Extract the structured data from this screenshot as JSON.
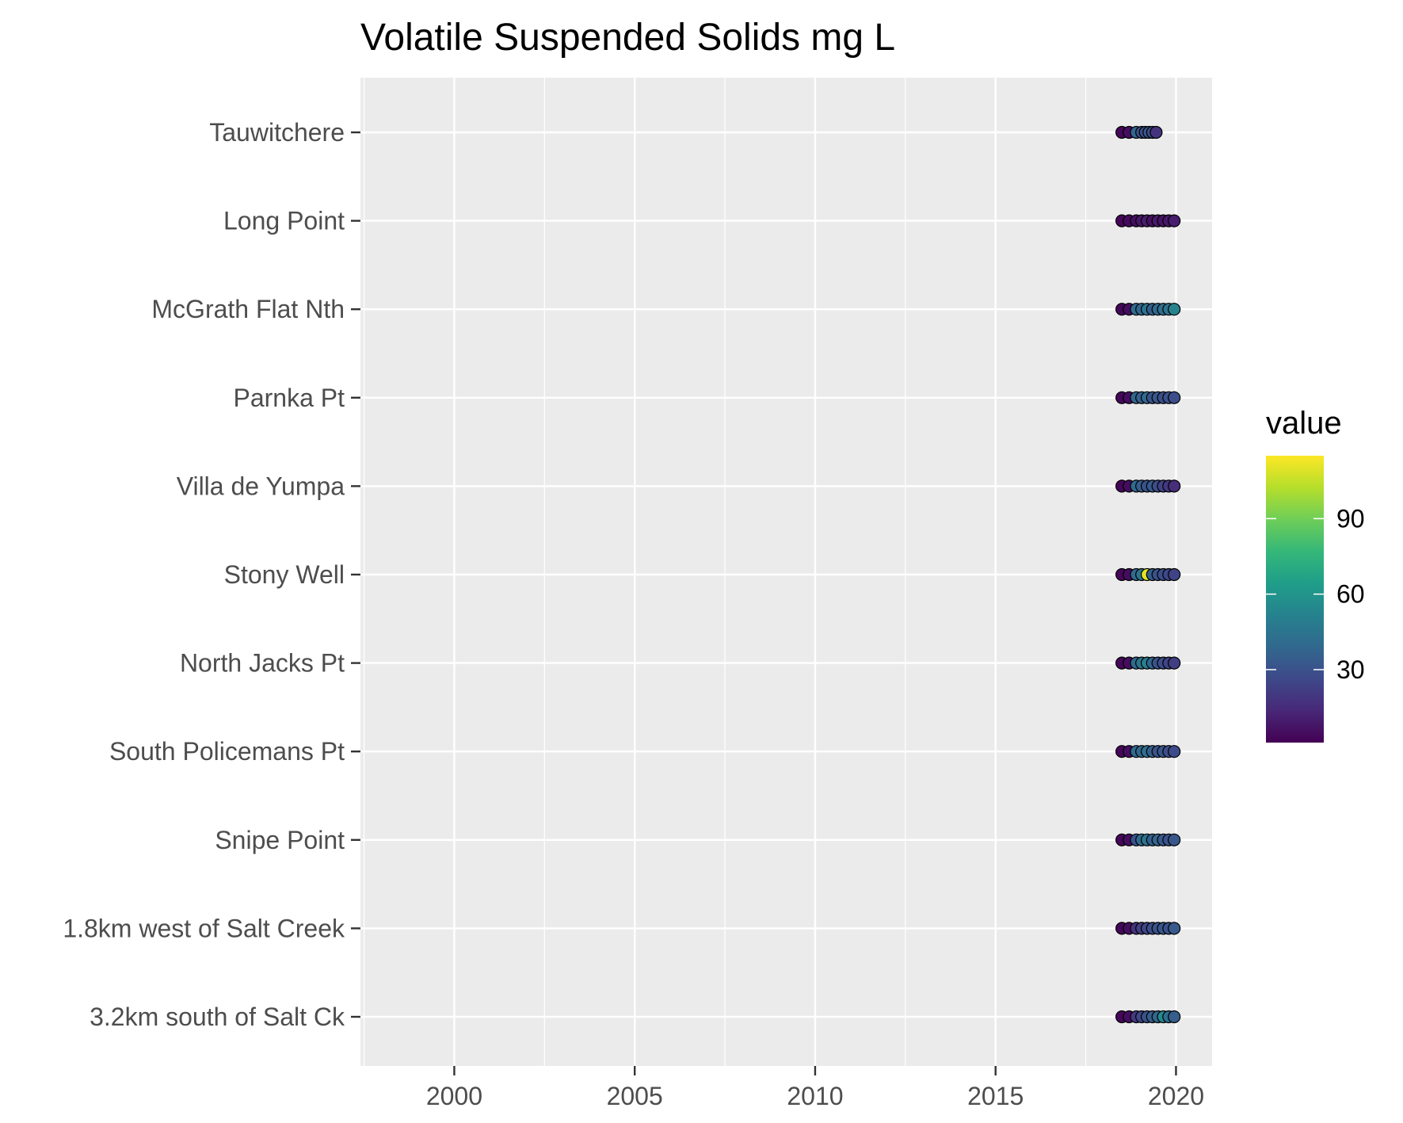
{
  "chart_data": {
    "type": "scatter",
    "title": "Volatile Suspended Solids mg L",
    "xlabel": "",
    "ylabel": "",
    "x_range": [
      1997.4,
      2021.0
    ],
    "x_ticks": [
      2000,
      2005,
      2010,
      2015,
      2020
    ],
    "x_tick_labels": [
      "2000",
      "2005",
      "2010",
      "2015",
      "2020"
    ],
    "grid": true,
    "categories": [
      "Tauwitchere",
      "Long Point",
      "McGrath Flat Nth",
      "Parnka Pt",
      "Villa de Yumpa",
      "Stony Well",
      "North Jacks Pt",
      "South Policemans Pt",
      "Snipe Point",
      "1.8km west of Salt Creek",
      "3.2km south of Salt Ck"
    ],
    "series": [
      {
        "site": "Tauwitchere",
        "x": [
          2018.5,
          2018.7,
          2018.9,
          2019.05,
          2019.15,
          2019.25,
          2019.35,
          2019.45
        ],
        "values": [
          3,
          5,
          38,
          30,
          28,
          33,
          27,
          18
        ]
      },
      {
        "site": "Long Point",
        "x": [
          2018.5,
          2018.7,
          2018.9,
          2019.05,
          2019.2,
          2019.35,
          2019.5,
          2019.65,
          2019.8,
          2019.95
        ],
        "values": [
          3,
          4,
          5,
          8,
          10,
          6,
          9,
          7,
          8,
          10
        ]
      },
      {
        "site": "McGrath Flat Nth",
        "x": [
          2018.5,
          2018.7,
          2018.9,
          2019.05,
          2019.2,
          2019.35,
          2019.5,
          2019.65,
          2019.8,
          2019.95
        ],
        "values": [
          3,
          5,
          40,
          38,
          45,
          35,
          40,
          42,
          44,
          52
        ]
      },
      {
        "site": "Parnka Pt",
        "x": [
          2018.5,
          2018.7,
          2018.9,
          2019.05,
          2019.2,
          2019.35,
          2019.5,
          2019.65,
          2019.8,
          2019.95
        ],
        "values": [
          3,
          5,
          38,
          35,
          40,
          30,
          33,
          28,
          30,
          28
        ]
      },
      {
        "site": "Villa de Yumpa",
        "x": [
          2018.5,
          2018.7,
          2018.9,
          2019.05,
          2019.2,
          2019.35,
          2019.5,
          2019.65,
          2019.8,
          2019.95
        ],
        "values": [
          3,
          5,
          40,
          35,
          30,
          33,
          28,
          24,
          20,
          16
        ]
      },
      {
        "site": "Stony Well",
        "x": [
          2018.5,
          2018.7,
          2018.9,
          2019.05,
          2019.2,
          2019.35,
          2019.5,
          2019.65,
          2019.8,
          2019.95
        ],
        "values": [
          3,
          5,
          40,
          45,
          110,
          35,
          30,
          28,
          26,
          24
        ]
      },
      {
        "site": "North Jacks Pt",
        "x": [
          2018.5,
          2018.7,
          2018.9,
          2019.05,
          2019.2,
          2019.35,
          2019.5,
          2019.65,
          2019.8,
          2019.95
        ],
        "values": [
          3,
          5,
          40,
          45,
          50,
          38,
          30,
          28,
          24,
          22
        ]
      },
      {
        "site": "South Policemans Pt",
        "x": [
          2018.5,
          2018.7,
          2018.9,
          2019.05,
          2019.2,
          2019.35,
          2019.5,
          2019.65,
          2019.8,
          2019.95
        ],
        "values": [
          3,
          5,
          40,
          38,
          42,
          35,
          30,
          32,
          28,
          27
        ]
      },
      {
        "site": "Snipe Point",
        "x": [
          2018.5,
          2018.7,
          2018.9,
          2019.05,
          2019.2,
          2019.35,
          2019.5,
          2019.65,
          2019.8,
          2019.95
        ],
        "values": [
          3,
          5,
          30,
          40,
          45,
          35,
          38,
          33,
          30,
          32
        ]
      },
      {
        "site": "1.8km west of Salt Creek",
        "x": [
          2018.5,
          2018.7,
          2018.9,
          2019.05,
          2019.2,
          2019.35,
          2019.5,
          2019.65,
          2019.8,
          2019.95
        ],
        "values": [
          3,
          5,
          18,
          22,
          25,
          28,
          30,
          32,
          30,
          33
        ]
      },
      {
        "site": "3.2km south of Salt Ck",
        "x": [
          2018.5,
          2018.7,
          2018.9,
          2019.05,
          2019.2,
          2019.35,
          2019.5,
          2019.65,
          2019.8,
          2019.95
        ],
        "values": [
          3,
          5,
          20,
          25,
          30,
          35,
          38,
          55,
          42,
          35
        ]
      }
    ],
    "legend": {
      "title": "value",
      "type": "colorbar",
      "palette": "viridis",
      "range": [
        1,
        115
      ],
      "ticks": [
        30,
        60,
        90
      ],
      "tick_labels": [
        "30",
        "60",
        "90"
      ],
      "placement": "right"
    },
    "colors": {
      "panel_background": "#ebebeb",
      "grid": "#ffffff",
      "tick_label": "#4d4d4d",
      "point_outline": "#000000",
      "viridis_stops": [
        "#440154",
        "#482878",
        "#3e4989",
        "#31688e",
        "#26828e",
        "#1f9e89",
        "#35b779",
        "#6ece58",
        "#b5de2b",
        "#fde725"
      ]
    }
  }
}
